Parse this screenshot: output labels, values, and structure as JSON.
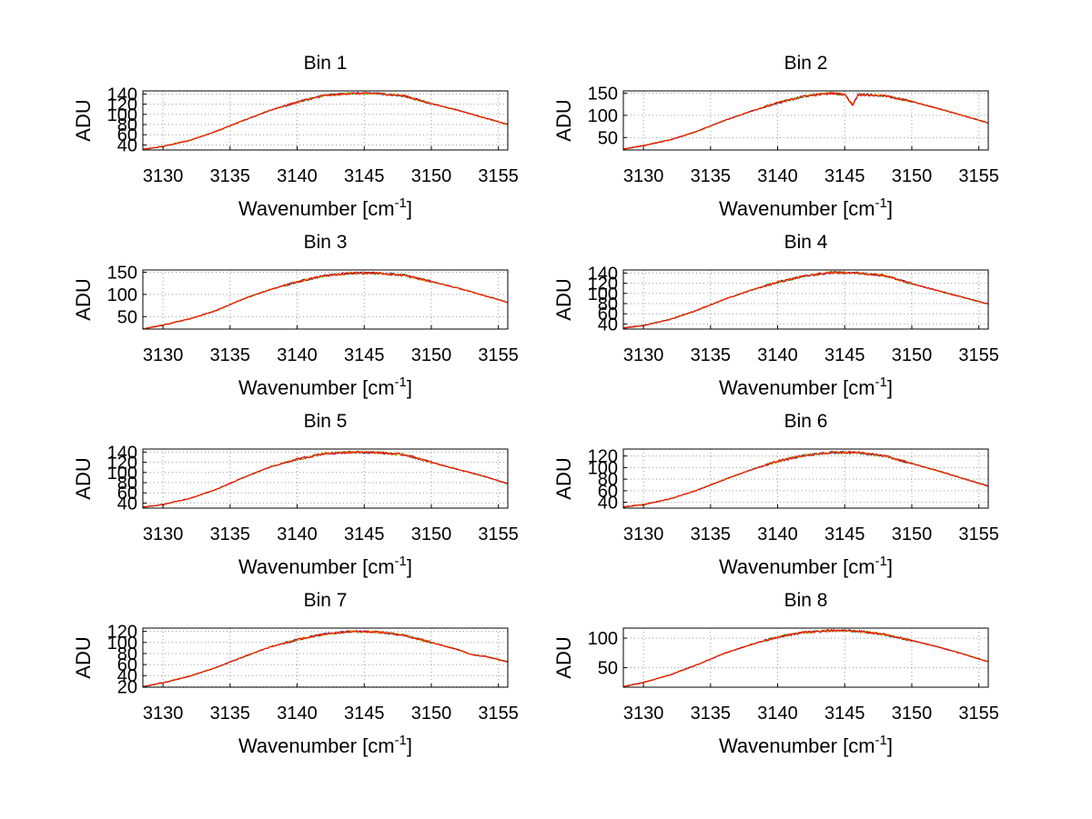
{
  "chart_data": [
    {
      "type": "line",
      "title": "Bin 1",
      "xlabel": "Wavenumber [cm",
      "xlabel_sup": "-1",
      "xlabel_close": "]",
      "ylabel": "ADU",
      "xlim": [
        3128.5,
        3155.7
      ],
      "ylim": [
        30,
        146
      ],
      "xticks": [
        3130,
        3135,
        3140,
        3145,
        3150,
        3155
      ],
      "yticks": [
        40,
        60,
        80,
        100,
        120,
        140
      ],
      "series": [
        {
          "color": "#ff0000",
          "values": [
            [
              3128.5,
              31
            ],
            [
              3130,
              37
            ],
            [
              3132,
              49
            ],
            [
              3134,
              67
            ],
            [
              3136,
              88
            ],
            [
              3138,
              108
            ],
            [
              3140,
              124
            ],
            [
              3142,
              137
            ],
            [
              3144,
              141
            ],
            [
              3146,
              141
            ],
            [
              3148,
              136
            ],
            [
              3150,
              121
            ],
            [
              3152,
              108
            ],
            [
              3154,
              93
            ],
            [
              3155.7,
              80
            ]
          ]
        }
      ]
    },
    {
      "type": "line",
      "title": "Bin 2",
      "xlabel": "Wavenumber [cm",
      "xlabel_sup": "-1",
      "xlabel_close": "]",
      "ylabel": "ADU",
      "xlim": [
        3128.5,
        3155.7
      ],
      "ylim": [
        22,
        155
      ],
      "xticks": [
        3130,
        3135,
        3140,
        3145,
        3150,
        3155
      ],
      "yticks": [
        50,
        100,
        150
      ],
      "series": [
        {
          "color": "#ff0000",
          "values": [
            [
              3128.5,
              24
            ],
            [
              3130,
              32
            ],
            [
              3132,
              45
            ],
            [
              3134,
              64
            ],
            [
              3136,
              88
            ],
            [
              3138,
              109
            ],
            [
              3140,
              128
            ],
            [
              3142,
              143
            ],
            [
              3144,
              150
            ],
            [
              3145,
              147
            ],
            [
              3145.6,
              123
            ],
            [
              3146,
              147
            ],
            [
              3148,
              144
            ],
            [
              3150,
              131
            ],
            [
              3152,
              115
            ],
            [
              3154,
              98
            ],
            [
              3155.7,
              83
            ]
          ]
        }
      ]
    },
    {
      "type": "line",
      "title": "Bin 3",
      "xlabel": "Wavenumber [cm",
      "xlabel_sup": "-1",
      "xlabel_close": "]",
      "ylabel": "ADU",
      "xlim": [
        3128.5,
        3155.7
      ],
      "ylim": [
        22,
        155
      ],
      "xticks": [
        3130,
        3135,
        3140,
        3145,
        3150,
        3155
      ],
      "yticks": [
        50,
        100,
        150
      ],
      "series": [
        {
          "color": "#ff0000",
          "values": [
            [
              3128.5,
              22
            ],
            [
              3130,
              31
            ],
            [
              3132,
              45
            ],
            [
              3134,
              64
            ],
            [
              3136,
              90
            ],
            [
              3138,
              111
            ],
            [
              3140,
              128
            ],
            [
              3142,
              142
            ],
            [
              3144,
              148
            ],
            [
              3146,
              148
            ],
            [
              3148,
              143
            ],
            [
              3150,
              129
            ],
            [
              3152,
              114
            ],
            [
              3154,
              97
            ],
            [
              3155.7,
              82
            ]
          ]
        }
      ]
    },
    {
      "type": "line",
      "title": "Bin 4",
      "xlabel": "Wavenumber [cm",
      "xlabel_sup": "-1",
      "xlabel_close": "]",
      "ylabel": "ADU",
      "xlim": [
        3128.5,
        3155.7
      ],
      "ylim": [
        30,
        146
      ],
      "xticks": [
        3130,
        3135,
        3140,
        3145,
        3150,
        3155
      ],
      "yticks": [
        40,
        60,
        80,
        100,
        120,
        140
      ],
      "series": [
        {
          "color": "#ff0000",
          "values": [
            [
              3128.5,
              32
            ],
            [
              3130,
              37
            ],
            [
              3132,
              49
            ],
            [
              3134,
              67
            ],
            [
              3136,
              88
            ],
            [
              3138,
              106
            ],
            [
              3140,
              122
            ],
            [
              3142,
              134
            ],
            [
              3144,
              141
            ],
            [
              3146,
              140
            ],
            [
              3148,
              135
            ],
            [
              3150,
              119
            ],
            [
              3152,
              105
            ],
            [
              3154,
              91
            ],
            [
              3155.7,
              79
            ]
          ]
        }
      ]
    },
    {
      "type": "line",
      "title": "Bin 5",
      "xlabel": "Wavenumber [cm",
      "xlabel_sup": "-1",
      "xlabel_close": "]",
      "ylabel": "ADU",
      "xlim": [
        3128.5,
        3155.7
      ],
      "ylim": [
        30,
        146
      ],
      "xticks": [
        3130,
        3135,
        3140,
        3145,
        3150,
        3155
      ],
      "yticks": [
        40,
        60,
        80,
        100,
        120,
        140
      ],
      "series": [
        {
          "color": "#ff0000",
          "values": [
            [
              3128.5,
              32
            ],
            [
              3130,
              37
            ],
            [
              3132,
              49
            ],
            [
              3134,
              67
            ],
            [
              3136,
              90
            ],
            [
              3138,
              111
            ],
            [
              3140,
              126
            ],
            [
              3142,
              137
            ],
            [
              3144,
              140
            ],
            [
              3146,
              139
            ],
            [
              3148,
              135
            ],
            [
              3150,
              120
            ],
            [
              3152,
              106
            ],
            [
              3154,
              92
            ],
            [
              3155.7,
              78
            ]
          ]
        }
      ]
    },
    {
      "type": "line",
      "title": "Bin 6",
      "xlabel": "Wavenumber [cm",
      "xlabel_sup": "-1",
      "xlabel_close": "]",
      "ylabel": "ADU",
      "xlim": [
        3128.5,
        3155.7
      ],
      "ylim": [
        30,
        132
      ],
      "xticks": [
        3130,
        3135,
        3140,
        3145,
        3150,
        3155
      ],
      "yticks": [
        40,
        60,
        80,
        100,
        120
      ],
      "series": [
        {
          "color": "#ff0000",
          "values": [
            [
              3128.5,
              32
            ],
            [
              3130,
              36
            ],
            [
              3132,
              46
            ],
            [
              3134,
              61
            ],
            [
              3136,
              79
            ],
            [
              3138,
              96
            ],
            [
              3140,
              111
            ],
            [
              3142,
              121
            ],
            [
              3144,
              126
            ],
            [
              3146,
              126
            ],
            [
              3148,
              120
            ],
            [
              3150,
              107
            ],
            [
              3152,
              94
            ],
            [
              3154,
              80
            ],
            [
              3155.7,
              68
            ]
          ]
        }
      ]
    },
    {
      "type": "line",
      "title": "Bin 7",
      "xlabel": "Wavenumber [cm",
      "xlabel_sup": "-1",
      "xlabel_close": "]",
      "ylabel": "ADU",
      "xlim": [
        3128.5,
        3155.7
      ],
      "ylim": [
        19,
        126
      ],
      "xticks": [
        3130,
        3135,
        3140,
        3145,
        3150,
        3155
      ],
      "yticks": [
        20,
        40,
        60,
        80,
        100,
        120
      ],
      "series": [
        {
          "color": "#ff0000",
          "values": [
            [
              3128.5,
              20
            ],
            [
              3130,
              27
            ],
            [
              3132,
              39
            ],
            [
              3134,
              55
            ],
            [
              3136,
              74
            ],
            [
              3138,
              92
            ],
            [
              3140,
              105
            ],
            [
              3142,
              115
            ],
            [
              3144,
              120
            ],
            [
              3146,
              119
            ],
            [
              3148,
              113
            ],
            [
              3150,
              100
            ],
            [
              3152,
              87
            ],
            [
              3153,
              78
            ],
            [
              3154,
              75
            ],
            [
              3155.7,
              65
            ]
          ]
        }
      ]
    },
    {
      "type": "line",
      "title": "Bin 8",
      "xlabel": "Wavenumber [cm",
      "xlabel_sup": "-1",
      "xlabel_close": "]",
      "ylabel": "ADU",
      "xlim": [
        3128.5,
        3155.7
      ],
      "ylim": [
        17,
        117
      ],
      "xticks": [
        3130,
        3135,
        3140,
        3145,
        3150,
        3155
      ],
      "yticks": [
        50,
        100
      ],
      "series": [
        {
          "color": "#ff0000",
          "values": [
            [
              3128.5,
              18
            ],
            [
              3130,
              25
            ],
            [
              3132,
              38
            ],
            [
              3134,
              55
            ],
            [
              3136,
              74
            ],
            [
              3138,
              89
            ],
            [
              3140,
              102
            ],
            [
              3142,
              110
            ],
            [
              3144,
              113
            ],
            [
              3146,
              112
            ],
            [
              3148,
              106
            ],
            [
              3150,
              96
            ],
            [
              3152,
              85
            ],
            [
              3154,
              72
            ],
            [
              3155.7,
              60
            ]
          ]
        }
      ]
    }
  ]
}
